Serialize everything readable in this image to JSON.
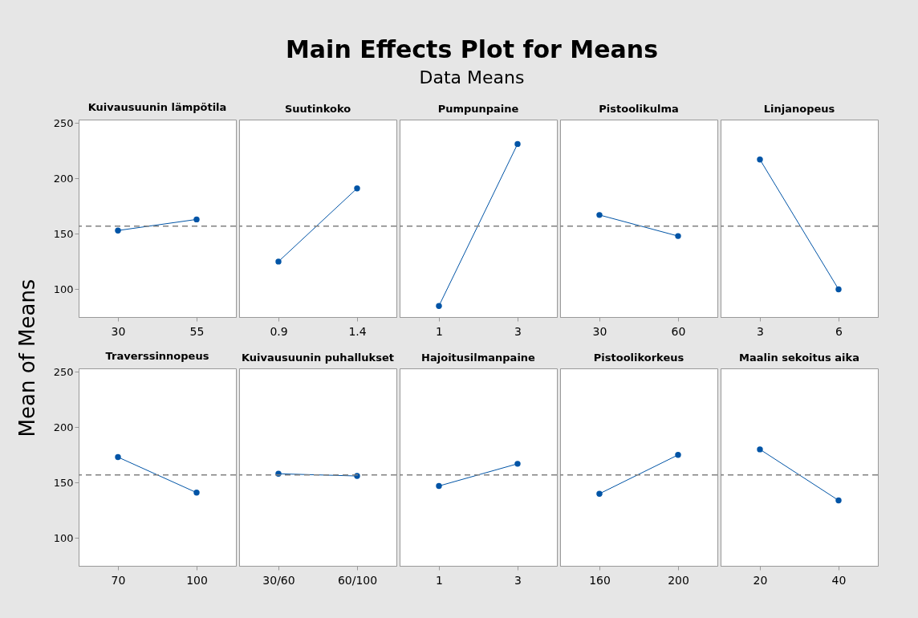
{
  "chart_data": [
    {
      "type": "other",
      "title": "Main Effects Plot for Means",
      "subtitle": "Data Means"
    },
    {
      "type": "line",
      "ylabel": "Mean of Means",
      "categories": [
        "30",
        "55"
      ],
      "series": [
        {
          "color": "#0054a6",
          "values": [
            153,
            163
          ]
        }
      ],
      "ylim": [
        75,
        253
      ],
      "yticks": [
        100,
        150,
        200,
        250
      ],
      "ref_lines": [
        {
          "axis": "y",
          "value": 157,
          "label": null,
          "color": "#808080",
          "line_style": "dashed"
        }
      ],
      "marker": "circle",
      "line_style": "solid",
      "annotations": [
        "Kuivausuunin lämpötila"
      ]
    },
    {
      "type": "line",
      "categories": [
        "0.9",
        "1.4"
      ],
      "series": [
        {
          "color": "#0054a6",
          "values": [
            125,
            191
          ]
        }
      ],
      "ylim": [
        75,
        253
      ],
      "yticks": [
        100,
        150,
        200,
        250
      ],
      "tick_labels": "x",
      "ref_lines": [
        {
          "axis": "y",
          "value": 157,
          "label": null,
          "color": "#808080",
          "line_style": "dashed"
        }
      ],
      "marker": "circle",
      "line_style": "solid",
      "annotations": [
        "Suutinkoko"
      ]
    },
    {
      "type": "line",
      "categories": [
        "1",
        "3"
      ],
      "series": [
        {
          "color": "#0054a6",
          "values": [
            85,
            231
          ]
        }
      ],
      "ylim": [
        75,
        253
      ],
      "yticks": [
        100,
        150,
        200,
        250
      ],
      "tick_labels": "x",
      "ref_lines": [
        {
          "axis": "y",
          "value": 157,
          "label": null,
          "color": "#808080",
          "line_style": "dashed"
        }
      ],
      "marker": "circle",
      "line_style": "solid",
      "annotations": [
        "Pumpunpaine"
      ]
    },
    {
      "type": "line",
      "categories": [
        "30",
        "60"
      ],
      "series": [
        {
          "color": "#0054a6",
          "values": [
            167,
            148
          ]
        }
      ],
      "ylim": [
        75,
        253
      ],
      "yticks": [
        100,
        150,
        200,
        250
      ],
      "tick_labels": "x",
      "ref_lines": [
        {
          "axis": "y",
          "value": 157,
          "label": null,
          "color": "#808080",
          "line_style": "dashed"
        }
      ],
      "marker": "circle",
      "line_style": "solid",
      "annotations": [
        "Pistoolikulma"
      ]
    },
    {
      "type": "line",
      "categories": [
        "3",
        "6"
      ],
      "series": [
        {
          "color": "#0054a6",
          "values": [
            217,
            100
          ]
        }
      ],
      "ylim": [
        75,
        253
      ],
      "yticks": [
        100,
        150,
        200,
        250
      ],
      "tick_labels": "x",
      "ref_lines": [
        {
          "axis": "y",
          "value": 157,
          "label": null,
          "color": "#808080",
          "line_style": "dashed"
        }
      ],
      "marker": "circle",
      "line_style": "solid",
      "annotations": [
        "Linjanopeus"
      ]
    },
    {
      "type": "line",
      "categories": [
        "70",
        "100"
      ],
      "series": [
        {
          "color": "#0054a6",
          "values": [
            173,
            141
          ]
        }
      ],
      "ylim": [
        75,
        253
      ],
      "yticks": [
        100,
        150,
        200,
        250
      ],
      "ref_lines": [
        {
          "axis": "y",
          "value": 157,
          "label": null,
          "color": "#808080",
          "line_style": "dashed"
        }
      ],
      "marker": "circle",
      "line_style": "solid",
      "annotations": [
        "Traverssinnopeus"
      ]
    },
    {
      "type": "line",
      "categories": [
        "30/60",
        "60/100"
      ],
      "series": [
        {
          "color": "#0054a6",
          "values": [
            158,
            156
          ]
        }
      ],
      "ylim": [
        75,
        253
      ],
      "yticks": [
        100,
        150,
        200,
        250
      ],
      "tick_labels": "x",
      "ref_lines": [
        {
          "axis": "y",
          "value": 157,
          "label": null,
          "color": "#808080",
          "line_style": "dashed"
        }
      ],
      "marker": "circle",
      "line_style": "solid",
      "annotations": [
        "Kuivausuunin puhallukset"
      ]
    },
    {
      "type": "line",
      "categories": [
        "1",
        "3"
      ],
      "series": [
        {
          "color": "#0054a6",
          "values": [
            147,
            167
          ]
        }
      ],
      "ylim": [
        75,
        253
      ],
      "yticks": [
        100,
        150,
        200,
        250
      ],
      "tick_labels": "x",
      "ref_lines": [
        {
          "axis": "y",
          "value": 157,
          "label": null,
          "color": "#808080",
          "line_style": "dashed"
        }
      ],
      "marker": "circle",
      "line_style": "solid",
      "annotations": [
        "Hajoitusilmanpaine"
      ]
    },
    {
      "type": "line",
      "categories": [
        "160",
        "200"
      ],
      "series": [
        {
          "color": "#0054a6",
          "values": [
            140,
            175
          ]
        }
      ],
      "ylim": [
        75,
        253
      ],
      "yticks": [
        100,
        150,
        200,
        250
      ],
      "tick_labels": "x",
      "ref_lines": [
        {
          "axis": "y",
          "value": 157,
          "label": null,
          "color": "#808080",
          "line_style": "dashed"
        }
      ],
      "marker": "circle",
      "line_style": "solid",
      "annotations": [
        "Pistoolikorkeus"
      ]
    },
    {
      "type": "line",
      "categories": [
        "20",
        "40"
      ],
      "series": [
        {
          "color": "#0054a6",
          "values": [
            180,
            134
          ]
        }
      ],
      "ylim": [
        75,
        253
      ],
      "yticks": [
        100,
        150,
        200,
        250
      ],
      "tick_labels": "x",
      "ref_lines": [
        {
          "axis": "y",
          "value": 157,
          "label": null,
          "color": "#808080",
          "line_style": "dashed"
        }
      ],
      "marker": "circle",
      "line_style": "solid",
      "annotations": [
        "Maalin sekoitus aika"
      ]
    }
  ]
}
